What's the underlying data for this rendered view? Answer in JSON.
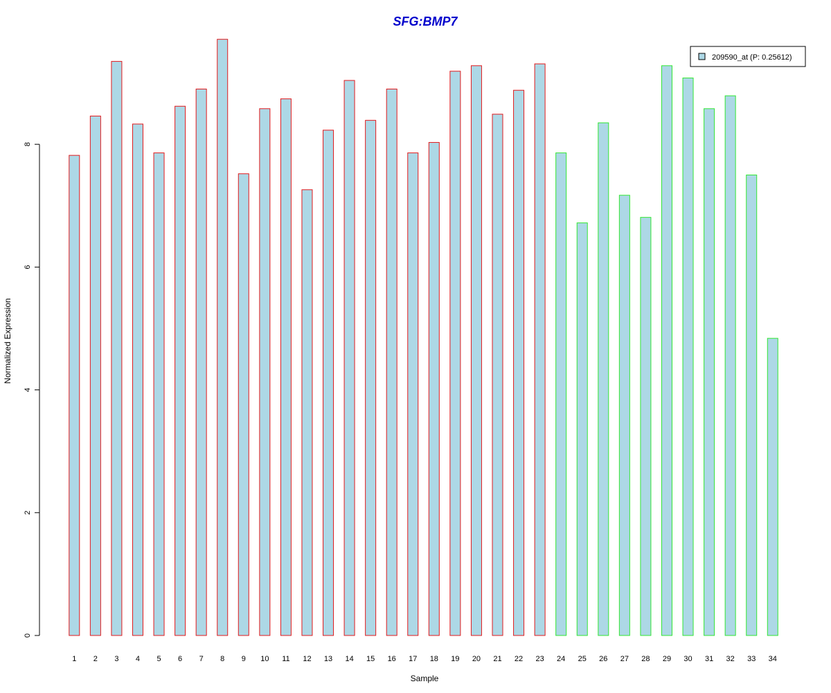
{
  "chart_data": {
    "type": "bar",
    "title": "SFG:BMP7",
    "xlabel": "Sample",
    "ylabel": "Normalized Expression",
    "ylim": [
      0,
      9.7
    ],
    "yticks": [
      0,
      2,
      4,
      6,
      8
    ],
    "categories": [
      "1",
      "2",
      "3",
      "4",
      "5",
      "6",
      "7",
      "8",
      "9",
      "10",
      "11",
      "12",
      "13",
      "14",
      "15",
      "16",
      "17",
      "18",
      "19",
      "20",
      "21",
      "22",
      "23",
      "24",
      "25",
      "26",
      "27",
      "28",
      "29",
      "30",
      "31",
      "32",
      "33",
      "34"
    ],
    "series": [
      {
        "name": "209590_at (P: 0.25612)",
        "values": [
          7.82,
          8.46,
          9.35,
          8.33,
          7.86,
          8.62,
          8.9,
          9.71,
          7.52,
          8.58,
          8.74,
          7.26,
          8.23,
          9.04,
          8.39,
          8.9,
          7.86,
          8.03,
          9.19,
          9.28,
          8.49,
          8.88,
          9.31,
          7.86,
          6.72,
          8.35,
          7.17,
          6.81,
          9.28,
          9.08,
          8.58,
          8.79,
          7.5,
          4.84
        ]
      }
    ],
    "groups": [
      0,
      0,
      0,
      0,
      0,
      0,
      0,
      0,
      0,
      0,
      0,
      0,
      0,
      0,
      0,
      0,
      0,
      0,
      0,
      0,
      0,
      0,
      0,
      1,
      1,
      1,
      1,
      1,
      1,
      1,
      1,
      1,
      1,
      1
    ],
    "grid": false,
    "legend_position": "top-right"
  },
  "colors": {
    "bar_fill": "#add8e6",
    "group_borders": [
      "#e31a1c",
      "#33e633"
    ],
    "title": "#0000cc",
    "axis": "#000000"
  }
}
